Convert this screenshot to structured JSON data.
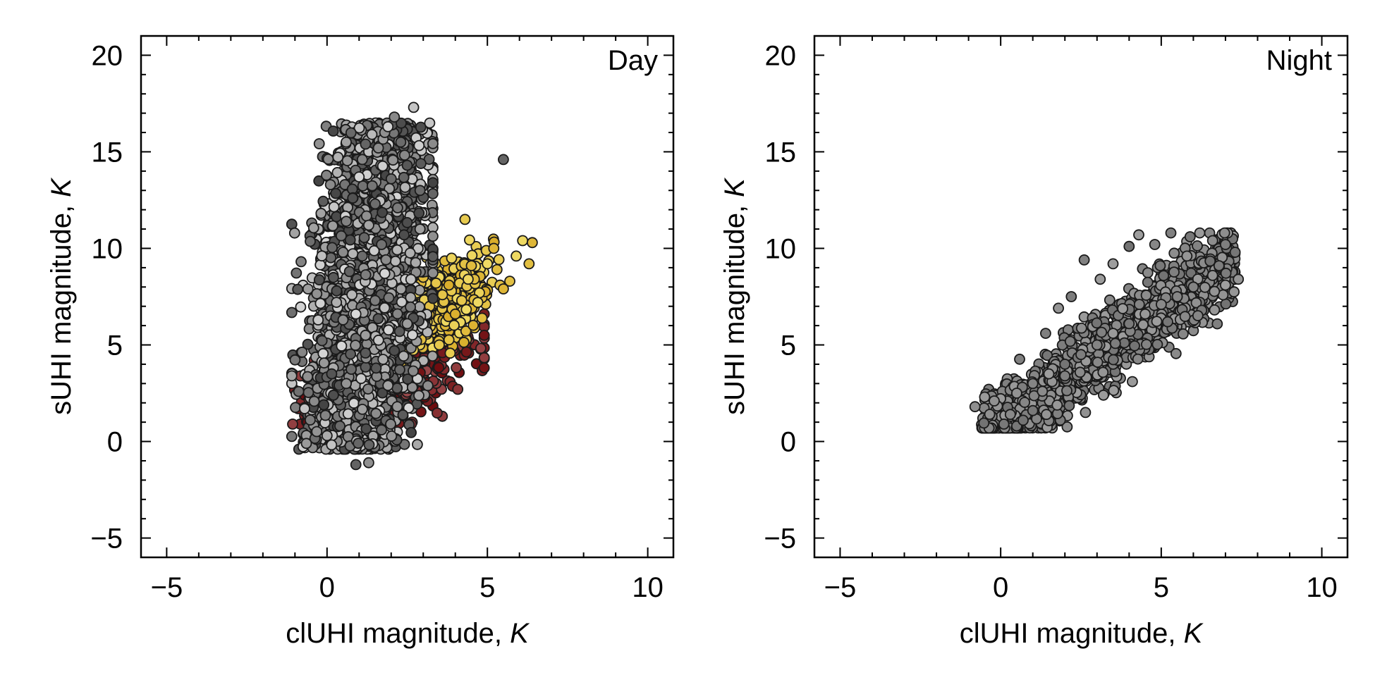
{
  "chart_data": [
    {
      "type": "scatter",
      "panel_label": "Day",
      "xlabel": "clUHI magnitude, ",
      "xlabel_unit": "K",
      "ylabel": "sUHI magnitude, ",
      "ylabel_unit": "K",
      "xlim": [
        -5.8,
        10.8
      ],
      "ylim": [
        -6,
        21
      ],
      "xticks": [
        -5,
        0,
        5,
        10
      ],
      "yticks": [
        -5,
        0,
        5,
        10,
        15,
        20
      ],
      "xtick_labels": [
        "−5",
        "0",
        "5",
        "10"
      ],
      "ytick_labels": [
        "−5",
        "0",
        "5",
        "10",
        "15",
        "20"
      ],
      "marker_edge_color": "#1a1a1a",
      "series": [
        {
          "color_low": "#6e0b0e",
          "color_high": "#9a4a4c",
          "points": [
            [
              -0.9,
              1.7
            ],
            [
              -0.5,
              3.3
            ],
            [
              -0.4,
              4.2
            ],
            [
              -0.2,
              6.5
            ],
            [
              0.0,
              4.2
            ],
            [
              0.1,
              2.6
            ],
            [
              0.2,
              3.1
            ],
            [
              0.3,
              1.9
            ],
            [
              0.4,
              3.6
            ],
            [
              0.5,
              2.3
            ],
            [
              0.6,
              4.8
            ],
            [
              0.7,
              2.8
            ],
            [
              0.8,
              1.5
            ],
            [
              0.9,
              3.9
            ],
            [
              1.0,
              2.1
            ],
            [
              1.1,
              3.2
            ],
            [
              1.2,
              2.6
            ],
            [
              1.3,
              4.4
            ],
            [
              1.4,
              1.9
            ],
            [
              1.5,
              3.5
            ],
            [
              1.6,
              2.4
            ],
            [
              1.7,
              3.0
            ],
            [
              1.8,
              4.1
            ],
            [
              1.9,
              2.2
            ],
            [
              2.0,
              3.3
            ],
            [
              2.1,
              5.0
            ],
            [
              2.2,
              2.7
            ],
            [
              2.3,
              3.8
            ],
            [
              2.4,
              4.6
            ],
            [
              2.5,
              3.1
            ],
            [
              2.6,
              5.4
            ],
            [
              2.7,
              2.9
            ],
            [
              2.8,
              4.0
            ],
            [
              3.0,
              4.8
            ],
            [
              3.2,
              6.1
            ],
            [
              3.4,
              5.0
            ],
            [
              3.6,
              4.6
            ],
            [
              3.8,
              6.6
            ],
            [
              4.0,
              7.5
            ],
            [
              4.2,
              6.2
            ],
            [
              4.4,
              6.9
            ],
            [
              4.6,
              8.3
            ],
            [
              4.9,
              6.6
            ],
            [
              3.9,
              8.7
            ],
            [
              4.1,
              9.3
            ],
            [
              2.9,
              7.2
            ],
            [
              0.3,
              5.6
            ],
            [
              0.5,
              4.3
            ],
            [
              0.2,
              2.1
            ],
            [
              1.4,
              2.8
            ],
            [
              1.7,
              4.8
            ],
            [
              2.6,
              3.6
            ],
            [
              0.7,
              1.9
            ],
            [
              1.2,
              1.3
            ],
            [
              2.1,
              3.9
            ]
          ],
          "count": 1500
        },
        {
          "color_low": "#d9ad2b",
          "color_high": "#f0dc66",
          "points": [
            [
              0.8,
              4.1
            ],
            [
              1.0,
              5.5
            ],
            [
              1.2,
              6.8
            ],
            [
              1.4,
              4.9
            ],
            [
              1.6,
              8.2
            ],
            [
              1.8,
              6.1
            ],
            [
              2.0,
              7.4
            ],
            [
              2.2,
              5.8
            ],
            [
              2.4,
              8.0
            ],
            [
              2.6,
              6.5
            ],
            [
              2.8,
              7.7
            ],
            [
              3.0,
              8.5
            ],
            [
              3.2,
              7.0
            ],
            [
              3.4,
              8.2
            ],
            [
              3.6,
              7.6
            ],
            [
              3.8,
              8.1
            ],
            [
              4.0,
              6.6
            ],
            [
              4.2,
              7.3
            ],
            [
              4.4,
              8.4
            ],
            [
              4.5,
              9.1
            ],
            [
              4.7,
              7.2
            ],
            [
              5.0,
              9.2
            ],
            [
              5.2,
              10.0
            ],
            [
              5.3,
              8.9
            ],
            [
              5.5,
              7.9
            ],
            [
              5.7,
              8.3
            ],
            [
              5.9,
              9.6
            ],
            [
              6.1,
              10.4
            ],
            [
              6.3,
              9.2
            ],
            [
              6.4,
              10.3
            ],
            [
              4.3,
              11.5
            ],
            [
              3.5,
              5.0
            ],
            [
              2.9,
              6.0
            ],
            [
              2.5,
              5.2
            ],
            [
              1.1,
              8.9
            ],
            [
              1.5,
              9.8
            ],
            [
              1.9,
              4.6
            ],
            [
              2.3,
              4.3
            ],
            [
              1.3,
              7.2
            ]
          ],
          "count": 1200
        },
        {
          "color_low": "#444444",
          "color_high": "#d8d8d8",
          "points": [
            [
              0.9,
              -1.2
            ],
            [
              1.3,
              -1.1
            ],
            [
              0.0,
              0.3
            ],
            [
              0.4,
              0.8
            ],
            [
              1.7,
              0.6
            ],
            [
              0.3,
              7.8
            ],
            [
              0.5,
              9.8
            ],
            [
              0.6,
              11.4
            ],
            [
              0.8,
              12.6
            ],
            [
              1.0,
              13.7
            ],
            [
              1.1,
              14.6
            ],
            [
              1.2,
              15.4
            ],
            [
              1.4,
              15.9
            ],
            [
              1.6,
              15.2
            ],
            [
              1.8,
              16.0
            ],
            [
              1.9,
              16.3
            ],
            [
              2.1,
              16.8
            ],
            [
              2.3,
              15.5
            ],
            [
              2.5,
              14.3
            ],
            [
              2.7,
              17.3
            ],
            [
              2.9,
              13.0
            ],
            [
              3.3,
              13.4
            ],
            [
              2.9,
              11.0
            ],
            [
              5.5,
              14.6
            ],
            [
              1.3,
              11.2
            ],
            [
              1.5,
              12.3
            ],
            [
              1.7,
              10.2
            ],
            [
              2.0,
              13.6
            ],
            [
              2.2,
              12.1
            ],
            [
              2.4,
              10.7
            ],
            [
              0.7,
              8.8
            ],
            [
              0.9,
              6.6
            ],
            [
              1.1,
              9.6
            ],
            [
              1.5,
              7.3
            ],
            [
              1.8,
              8.7
            ],
            [
              0.2,
              2.4
            ],
            [
              -0.1,
              1.9
            ],
            [
              -1.1,
              3.4
            ],
            [
              -0.7,
              1.7
            ],
            [
              0.6,
              3.0
            ],
            [
              1.9,
              2.9
            ],
            [
              2.1,
              4.7
            ],
            [
              2.5,
              6.1
            ],
            [
              1.2,
              5.5
            ],
            [
              0.5,
              6.3
            ]
          ],
          "count": 3000
        }
      ]
    },
    {
      "type": "scatter",
      "panel_label": "Night",
      "xlabel": "clUHI magnitude, ",
      "xlabel_unit": "K",
      "ylabel": "sUHI magnitude, ",
      "ylabel_unit": "K",
      "xlim": [
        -5.8,
        10.8
      ],
      "ylim": [
        -6,
        21
      ],
      "xticks": [
        -5,
        0,
        5,
        10
      ],
      "yticks": [
        -5,
        0,
        5,
        10,
        15,
        20
      ],
      "xtick_labels": [
        "−5",
        "0",
        "5",
        "10"
      ],
      "ytick_labels": [
        "−5",
        "0",
        "5",
        "10",
        "15",
        "20"
      ],
      "marker_edge_color": "#1a1a1a",
      "series": [
        {
          "color_low": "#727272",
          "color_high": "#9e9e9e",
          "points": [
            [
              -0.8,
              1.8
            ],
            [
              -0.5,
              2.3
            ],
            [
              -0.2,
              2.1
            ],
            [
              0.1,
              0.9
            ],
            [
              0.3,
              1.4
            ],
            [
              0.5,
              0.8
            ],
            [
              0.7,
              1.1
            ],
            [
              1.0,
              1.6
            ],
            [
              1.3,
              2.6
            ],
            [
              1.6,
              3.1
            ],
            [
              2.0,
              3.4
            ],
            [
              2.6,
              9.4
            ],
            [
              3.1,
              8.4
            ],
            [
              3.5,
              9.2
            ],
            [
              4.0,
              10.1
            ],
            [
              4.3,
              10.7
            ],
            [
              4.8,
              10.2
            ],
            [
              5.3,
              10.8
            ],
            [
              5.9,
              10.6
            ],
            [
              6.2,
              10.8
            ],
            [
              6.6,
              10.4
            ],
            [
              7.0,
              10.2
            ],
            [
              7.3,
              9.8
            ],
            [
              7.4,
              8.4
            ],
            [
              7.0,
              8.1
            ],
            [
              6.6,
              8.6
            ],
            [
              6.0,
              8.0
            ],
            [
              5.5,
              7.5
            ],
            [
              5.0,
              7.1
            ],
            [
              4.5,
              6.6
            ],
            [
              4.0,
              6.1
            ],
            [
              3.5,
              5.6
            ],
            [
              3.0,
              5.0
            ],
            [
              2.5,
              4.5
            ],
            [
              2.0,
              4.0
            ],
            [
              1.5,
              3.5
            ],
            [
              1.0,
              3.0
            ],
            [
              0.5,
              2.5
            ],
            [
              3.2,
              2.4
            ],
            [
              4.1,
              3.1
            ],
            [
              1.8,
              6.9
            ],
            [
              2.2,
              7.5
            ],
            [
              1.4,
              5.6
            ],
            [
              5.8,
              9.6
            ],
            [
              6.8,
              9.1
            ]
          ],
          "count": 1400
        }
      ]
    }
  ]
}
